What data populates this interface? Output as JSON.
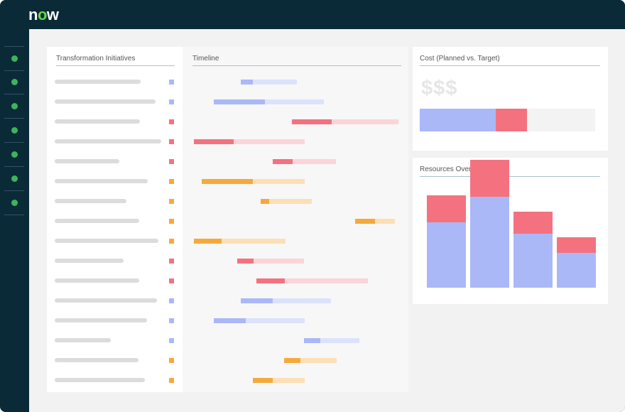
{
  "brand": {
    "logo": "now",
    "logo_accent_color": "#62d84e"
  },
  "colors": {
    "blue": "#aab8f7",
    "blue_light": "#dce2fb",
    "red": "#f4727f",
    "red_light": "#fbd4d9",
    "orange": "#f6a93b",
    "orange_light": "#fcdfb5"
  },
  "sidebar": {
    "items": [
      "",
      "",
      "",
      "",
      "",
      "",
      ""
    ]
  },
  "initiatives": {
    "title": "Transformation Initiatives",
    "items": [
      {
        "status": "blue"
      },
      {
        "status": "blue"
      },
      {
        "status": "red"
      },
      {
        "status": "red"
      },
      {
        "status": "red"
      },
      {
        "status": "orange"
      },
      {
        "status": "orange"
      },
      {
        "status": "orange"
      },
      {
        "status": "orange"
      },
      {
        "status": "red"
      },
      {
        "status": "red"
      },
      {
        "status": "blue"
      },
      {
        "status": "blue"
      },
      {
        "status": "blue"
      },
      {
        "status": "orange"
      },
      {
        "status": "orange"
      }
    ]
  },
  "timeline": {
    "title": "Timeline"
  },
  "cost": {
    "title": "Cost (Planned vs. Target)",
    "symbol": "$$$",
    "planned_fraction": 0.435,
    "over_fraction": 0.18
  },
  "resources": {
    "title": "Resources Overview",
    "bars": [
      {
        "base": 0.51,
        "over": 0.21
      },
      {
        "base": 0.71,
        "over": 0.29
      },
      {
        "base": 0.42,
        "over": 0.17
      },
      {
        "base": 0.27,
        "over": 0.12
      }
    ]
  }
}
